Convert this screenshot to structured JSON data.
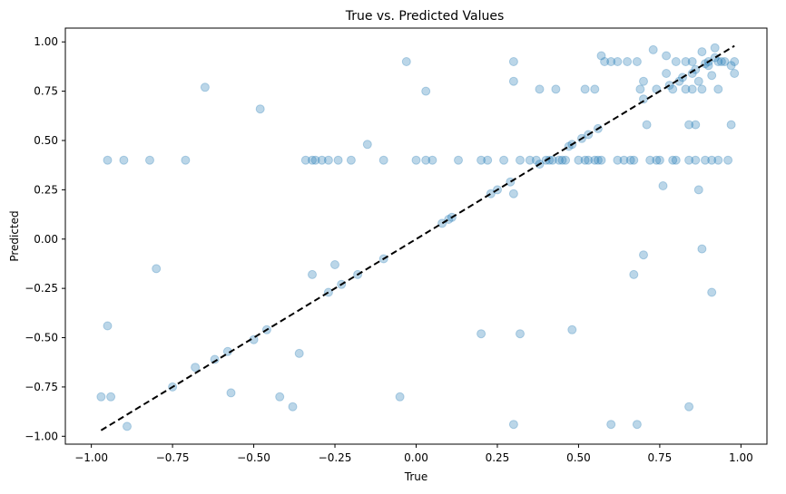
{
  "chart_data": {
    "type": "scatter",
    "title": "True vs. Predicted Values",
    "xlabel": "True",
    "ylabel": "Predicted",
    "xlim": [
      -1.08,
      1.08
    ],
    "ylim": [
      -1.04,
      1.07
    ],
    "xticks": [
      -1.0,
      -0.75,
      -0.5,
      -0.25,
      0.0,
      0.25,
      0.5,
      0.75,
      1.0
    ],
    "yticks": [
      -1.0,
      -0.75,
      -0.5,
      -0.25,
      0.0,
      0.25,
      0.5,
      0.75,
      1.0
    ],
    "xtick_labels": [
      "−1.00",
      "−0.75",
      "−0.50",
      "−0.25",
      "0.00",
      "0.25",
      "0.50",
      "0.75",
      "1.00"
    ],
    "ytick_labels": [
      "−1.00",
      "−0.75",
      "−0.50",
      "−0.25",
      "0.00",
      "0.25",
      "0.50",
      "0.75",
      "1.00"
    ],
    "grid": false,
    "point_color": "#1f77b4",
    "point_alpha": 0.3,
    "reference_line": {
      "x": [
        -0.97,
        0.98
      ],
      "y": [
        -0.97,
        0.98
      ],
      "style": "dashed",
      "color": "#000000"
    },
    "points": [
      [
        -0.97,
        -0.8
      ],
      [
        -0.94,
        -0.8
      ],
      [
        -0.89,
        -0.95
      ],
      [
        -0.95,
        -0.44
      ],
      [
        -0.95,
        0.4
      ],
      [
        -0.9,
        0.4
      ],
      [
        -0.82,
        0.4
      ],
      [
        -0.71,
        0.4
      ],
      [
        -0.8,
        -0.15
      ],
      [
        -0.75,
        -0.75
      ],
      [
        -0.68,
        -0.65
      ],
      [
        -0.62,
        -0.61
      ],
      [
        -0.58,
        -0.57
      ],
      [
        -0.57,
        -0.78
      ],
      [
        -0.5,
        -0.51
      ],
      [
        -0.46,
        -0.46
      ],
      [
        -0.65,
        0.77
      ],
      [
        -0.48,
        0.66
      ],
      [
        -0.42,
        -0.8
      ],
      [
        -0.38,
        -0.85
      ],
      [
        -0.36,
        -0.58
      ],
      [
        -0.34,
        0.4
      ],
      [
        -0.32,
        0.4
      ],
      [
        -0.31,
        0.4
      ],
      [
        -0.29,
        0.4
      ],
      [
        -0.27,
        0.4
      ],
      [
        -0.24,
        0.4
      ],
      [
        -0.2,
        0.4
      ],
      [
        -0.1,
        0.4
      ],
      [
        -0.32,
        -0.18
      ],
      [
        -0.27,
        -0.27
      ],
      [
        -0.25,
        -0.13
      ],
      [
        -0.23,
        -0.23
      ],
      [
        -0.18,
        -0.18
      ],
      [
        -0.1,
        -0.1
      ],
      [
        -0.15,
        0.48
      ],
      [
        -0.05,
        -0.8
      ],
      [
        -0.03,
        0.9
      ],
      [
        0.0,
        0.4
      ],
      [
        0.03,
        0.4
      ],
      [
        0.05,
        0.4
      ],
      [
        0.03,
        0.75
      ],
      [
        0.08,
        0.08
      ],
      [
        0.1,
        0.1
      ],
      [
        0.11,
        0.11
      ],
      [
        0.13,
        0.4
      ],
      [
        0.2,
        0.4
      ],
      [
        0.22,
        0.4
      ],
      [
        0.2,
        -0.48
      ],
      [
        0.23,
        0.23
      ],
      [
        0.25,
        0.25
      ],
      [
        0.27,
        0.4
      ],
      [
        0.29,
        0.29
      ],
      [
        0.3,
        0.23
      ],
      [
        0.3,
        0.8
      ],
      [
        0.3,
        0.9
      ],
      [
        0.3,
        -0.94
      ],
      [
        0.32,
        0.4
      ],
      [
        0.32,
        -0.48
      ],
      [
        0.35,
        0.4
      ],
      [
        0.37,
        0.4
      ],
      [
        0.38,
        0.38
      ],
      [
        0.38,
        0.76
      ],
      [
        0.4,
        0.4
      ],
      [
        0.42,
        0.4
      ],
      [
        0.43,
        0.76
      ],
      [
        0.45,
        0.4
      ],
      [
        0.47,
        0.47
      ],
      [
        0.48,
        0.48
      ],
      [
        0.48,
        -0.46
      ],
      [
        0.5,
        0.4
      ],
      [
        0.51,
        0.51
      ],
      [
        0.52,
        0.4
      ],
      [
        0.52,
        0.76
      ],
      [
        0.53,
        0.53
      ],
      [
        0.55,
        0.76
      ],
      [
        0.55,
        0.4
      ],
      [
        0.56,
        0.56
      ],
      [
        0.57,
        0.93
      ],
      [
        0.57,
        0.4
      ],
      [
        0.58,
        0.9
      ],
      [
        0.6,
        0.9
      ],
      [
        0.62,
        0.9
      ],
      [
        0.6,
        -0.94
      ],
      [
        0.62,
        0.4
      ],
      [
        0.64,
        0.4
      ],
      [
        0.65,
        0.9
      ],
      [
        0.66,
        0.4
      ],
      [
        0.67,
        -0.18
      ],
      [
        0.68,
        0.9
      ],
      [
        0.68,
        -0.94
      ],
      [
        0.69,
        0.76
      ],
      [
        0.7,
        0.8
      ],
      [
        0.7,
        -0.08
      ],
      [
        0.71,
        0.58
      ],
      [
        0.72,
        0.4
      ],
      [
        0.73,
        0.96
      ],
      [
        0.74,
        0.76
      ],
      [
        0.75,
        0.4
      ],
      [
        0.76,
        0.27
      ],
      [
        0.77,
        0.93
      ],
      [
        0.77,
        0.84
      ],
      [
        0.78,
        0.78
      ],
      [
        0.79,
        0.76
      ],
      [
        0.8,
        0.4
      ],
      [
        0.8,
        0.9
      ],
      [
        0.81,
        0.8
      ],
      [
        0.82,
        0.82
      ],
      [
        0.83,
        0.76
      ],
      [
        0.83,
        0.9
      ],
      [
        0.84,
        0.58
      ],
      [
        0.84,
        -0.85
      ],
      [
        0.85,
        0.9
      ],
      [
        0.85,
        0.76
      ],
      [
        0.86,
        0.4
      ],
      [
        0.86,
        0.58
      ],
      [
        0.87,
        0.25
      ],
      [
        0.87,
        0.8
      ],
      [
        0.88,
        0.76
      ],
      [
        0.88,
        -0.05
      ],
      [
        0.89,
        0.89
      ],
      [
        0.89,
        0.4
      ],
      [
        0.9,
        0.9
      ],
      [
        0.91,
        0.4
      ],
      [
        0.91,
        -0.27
      ],
      [
        0.92,
        0.97
      ],
      [
        0.92,
        0.92
      ],
      [
        0.93,
        0.76
      ],
      [
        0.93,
        0.4
      ],
      [
        0.94,
        0.9
      ],
      [
        0.95,
        0.9
      ],
      [
        0.96,
        0.4
      ],
      [
        0.97,
        0.88
      ],
      [
        0.97,
        0.58
      ],
      [
        0.98,
        0.84
      ],
      [
        0.98,
        0.9
      ],
      [
        0.88,
        0.95
      ],
      [
        0.91,
        0.83
      ],
      [
        0.86,
        0.86
      ],
      [
        0.85,
        0.84
      ],
      [
        0.67,
        0.4
      ],
      [
        0.7,
        0.71
      ],
      [
        0.74,
        0.4
      ],
      [
        0.79,
        0.4
      ],
      [
        0.41,
        0.4
      ],
      [
        0.44,
        0.4
      ],
      [
        0.46,
        0.4
      ],
      [
        0.53,
        0.4
      ],
      [
        0.56,
        0.4
      ],
      [
        0.84,
        0.4
      ],
      [
        0.9,
        0.88
      ],
      [
        0.93,
        0.9
      ]
    ]
  }
}
